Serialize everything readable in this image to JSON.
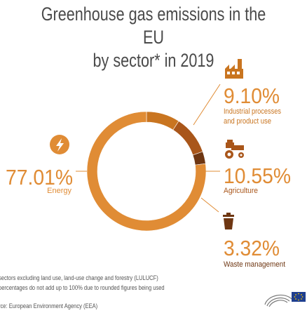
{
  "title": {
    "line1": "Greenhouse gas emissions in the EU",
    "line2": "by sector* in 2019"
  },
  "footnotes": {
    "note1": "sectors excluding land use, land-use change and forestry (LULUCF)",
    "note2": "percentages do not add up to 100% due to rounded figures being used",
    "source": "rce: European Environment Agency (EEA)"
  },
  "colors": {
    "energy": "#e08c35",
    "industrial": "#c97520",
    "agriculture": "#a9561a",
    "waste": "#6e3612",
    "text_orange": "#e08c35"
  },
  "icons": {
    "energy": "lightning-bolt-icon",
    "industrial": "factory-icon",
    "agriculture": "tractor-icon",
    "waste": "trash-bin-icon",
    "logo": "european-parliament-logo-icon"
  },
  "chart_data": {
    "type": "pie",
    "donut": true,
    "title": "Greenhouse gas emissions in the EU by sector* in 2019",
    "slices": [
      {
        "label": "Energy",
        "value": 77.01,
        "value_label": "77.01%"
      },
      {
        "label": "Industrial processes and product use",
        "value": 9.1,
        "value_label": "9.10%"
      },
      {
        "label": "Agriculture",
        "value": 10.55,
        "value_label": "10.55%"
      },
      {
        "label": "Waste management",
        "value": 3.32,
        "value_label": "3.32%"
      }
    ]
  }
}
